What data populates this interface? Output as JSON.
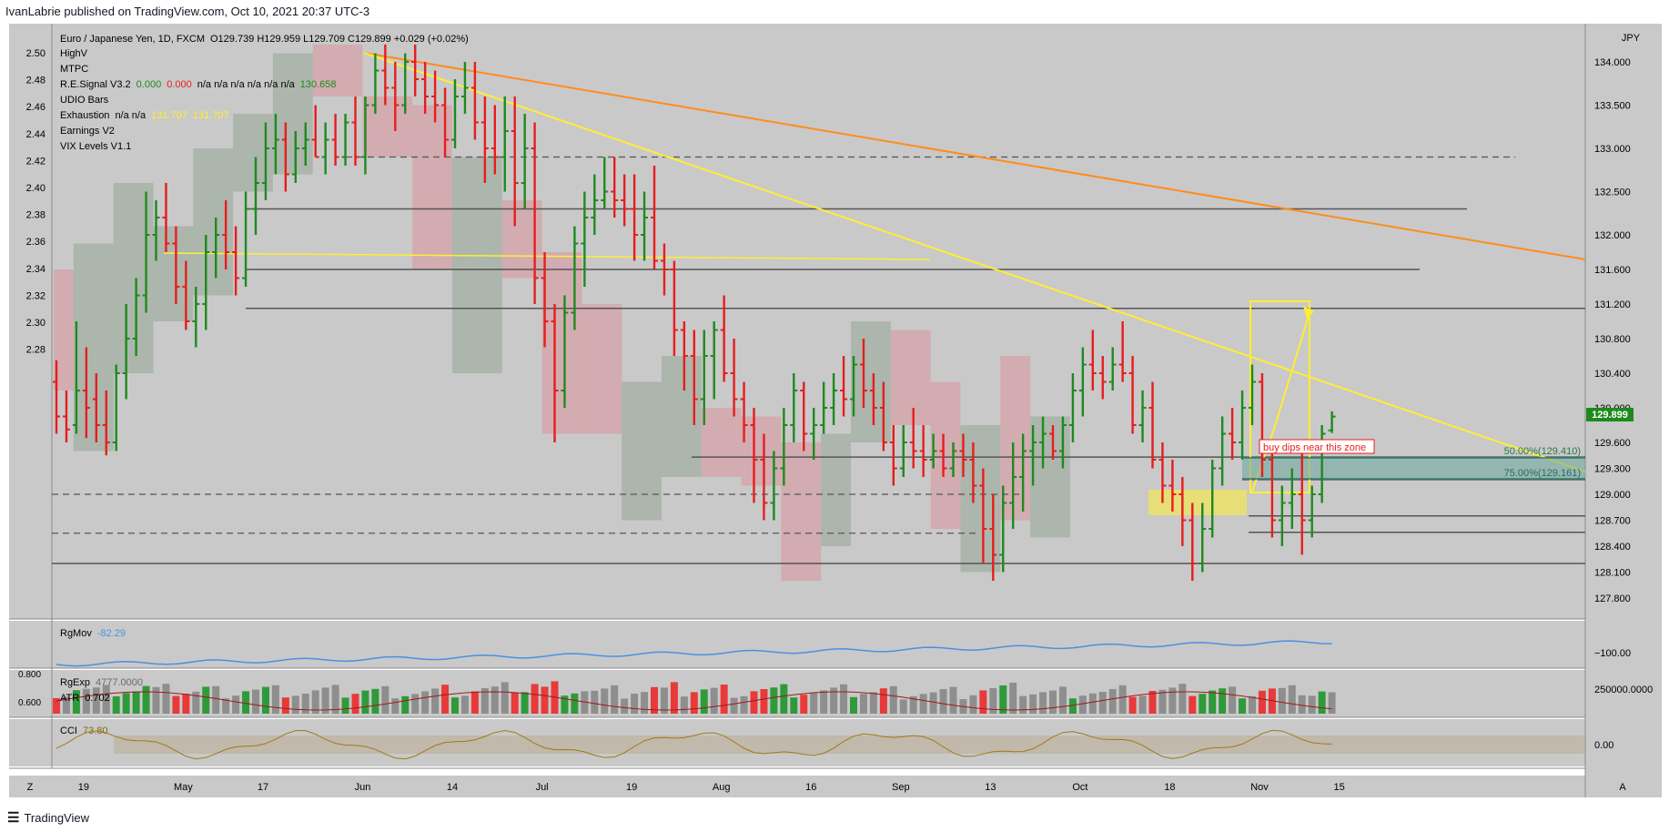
{
  "header": {
    "published_by": "IvanLabrie published on TradingView.com, Oct 10, 2021 20:37 UTC-3"
  },
  "footer": {
    "brand": "TradingView"
  },
  "legend": {
    "symbol": "Euro / Japanese Yen, 1D, FXCM",
    "ohlc": "O129.739 H129.959 L129.709 C129.899 +0.029 (+0.02%)",
    "indicators": [
      {
        "name": "HighV"
      },
      {
        "name": "MTPC"
      },
      {
        "name": "R.E.Signal V3.2",
        "v1": "0.000",
        "v2": "0.000",
        "rest": "n/a  n/a  n/a  n/a  n/a  n/a",
        "v3": "130.658"
      },
      {
        "name": "UDIO Bars"
      },
      {
        "name": "Exhaustion",
        "rest": "n/a  n/a",
        "v1": "131.707",
        "v2": "131.707"
      },
      {
        "name": "Earnings V2"
      },
      {
        "name": "VIX Levels V1.1"
      }
    ]
  },
  "axis": {
    "currency": "JPY",
    "left_ticks": [
      "2.50",
      "2.48",
      "2.46",
      "2.44",
      "2.42",
      "2.40",
      "2.38",
      "2.36",
      "2.34",
      "2.32",
      "2.30",
      "2.28"
    ],
    "right_ticks": [
      "134.000",
      "133.500",
      "133.000",
      "132.500",
      "132.000",
      "131.600",
      "131.200",
      "130.800",
      "130.400",
      "130.000",
      "129.600",
      "129.300",
      "129.000",
      "128.700",
      "128.400",
      "128.100",
      "127.800"
    ],
    "x_ticks": [
      "19",
      "May",
      "17",
      "Jun",
      "14",
      "Jul",
      "19",
      "Aug",
      "16",
      "Sep",
      "13",
      "Oct",
      "18",
      "Nov",
      "15"
    ],
    "corner_left": "Z",
    "corner_right": "A",
    "last_price": "129.899"
  },
  "annotations": {
    "note": "buy dips near this zone",
    "fib50": "50.00%(129.410)",
    "fib75": "75.00%(129.161)"
  },
  "panes": {
    "rgmov": {
      "label": "RgMov",
      "value": "-82.29",
      "tick": "−100.00"
    },
    "rgexp": {
      "label": "RgExp",
      "value": "4777.0000",
      "atr_label": "ATR",
      "atr_value": "0.702",
      "left_ticks": [
        "0.800",
        "0.600"
      ],
      "tick": "250000.0000"
    },
    "cci": {
      "label": "CCI",
      "value": "73.80",
      "tick": "0.00"
    }
  },
  "colors": {
    "bg": "#c9c9c9",
    "up": "#1e8a1e",
    "down": "#e81d1d",
    "neutral": "#111111",
    "yellow": "#ffee33",
    "orange": "#ff8c1a",
    "blue": "#4a90e2"
  },
  "chart_data": {
    "type": "bar",
    "title": "Euro / Japanese Yen, 1D, FXCM",
    "xlabel": "",
    "ylabel": "JPY",
    "ylim": [
      127.6,
      134.4
    ],
    "grid": false,
    "legend": "top-left",
    "levels": [
      132.3,
      131.6,
      131.15,
      129.43,
      129.17,
      128.75,
      128.56,
      132.9,
      129.0,
      128.55
    ],
    "series": [
      {
        "ohlc": [
          [
            130.3,
            130.55,
            129.7,
            129.9
          ],
          [
            129.9,
            130.2,
            129.6,
            129.75
          ],
          [
            129.8,
            131.0,
            129.7,
            130.2
          ],
          [
            130.2,
            130.7,
            129.65,
            130.0
          ],
          [
            130.1,
            130.4,
            129.6,
            129.8
          ],
          [
            129.8,
            130.2,
            129.45,
            129.6
          ],
          [
            129.6,
            130.5,
            129.5,
            130.4
          ],
          [
            130.4,
            131.2,
            130.1,
            130.8
          ],
          [
            130.8,
            131.5,
            130.6,
            131.3
          ],
          [
            131.3,
            132.5,
            131.1,
            132.0
          ],
          [
            132.0,
            132.4,
            131.7,
            132.2
          ],
          [
            132.2,
            132.6,
            131.8,
            131.9
          ],
          [
            131.9,
            132.1,
            131.2,
            131.4
          ],
          [
            131.4,
            131.7,
            130.9,
            131.0
          ],
          [
            131.0,
            131.4,
            130.7,
            131.2
          ],
          [
            131.2,
            132.0,
            130.9,
            131.8
          ],
          [
            131.8,
            132.2,
            131.5,
            132.0
          ],
          [
            132.0,
            132.4,
            131.6,
            131.8
          ],
          [
            131.8,
            132.1,
            131.3,
            131.5
          ],
          [
            131.5,
            132.5,
            131.4,
            132.3
          ],
          [
            132.3,
            132.9,
            132.0,
            132.6
          ],
          [
            132.6,
            133.3,
            132.4,
            133.0
          ],
          [
            133.0,
            133.4,
            132.7,
            133.1
          ],
          [
            133.1,
            133.3,
            132.5,
            132.7
          ],
          [
            132.7,
            133.2,
            132.6,
            133.0
          ],
          [
            133.0,
            133.3,
            132.8,
            133.1
          ],
          [
            133.1,
            133.5,
            132.9,
            132.9
          ],
          [
            132.9,
            133.3,
            132.7,
            133.1
          ],
          [
            133.1,
            133.4,
            132.8,
            132.9
          ],
          [
            132.9,
            133.4,
            132.8,
            133.3
          ],
          [
            133.3,
            133.6,
            132.8,
            132.9
          ],
          [
            132.9,
            133.6,
            132.7,
            133.5
          ],
          [
            133.5,
            134.1,
            133.4,
            133.9
          ],
          [
            133.9,
            134.2,
            133.5,
            133.7
          ],
          [
            133.7,
            134.0,
            133.2,
            133.5
          ],
          [
            133.5,
            134.1,
            133.4,
            134.0
          ],
          [
            134.0,
            134.2,
            133.6,
            133.8
          ],
          [
            133.8,
            134.0,
            133.4,
            133.6
          ],
          [
            133.6,
            133.9,
            133.3,
            133.5
          ],
          [
            133.5,
            133.7,
            132.9,
            133.1
          ],
          [
            133.1,
            133.8,
            133.0,
            133.6
          ],
          [
            133.6,
            134.0,
            133.4,
            133.7
          ],
          [
            133.7,
            134.0,
            133.1,
            133.3
          ],
          [
            133.3,
            133.6,
            132.6,
            133.0
          ],
          [
            133.0,
            133.5,
            132.7,
            132.9
          ],
          [
            132.9,
            133.6,
            132.5,
            133.2
          ],
          [
            133.2,
            133.6,
            132.1,
            132.6
          ],
          [
            132.6,
            133.4,
            132.3,
            133.0
          ],
          [
            133.0,
            133.3,
            131.2,
            131.5
          ],
          [
            131.5,
            131.8,
            130.7,
            131.0
          ],
          [
            131.0,
            131.2,
            129.6,
            130.2
          ],
          [
            130.2,
            131.3,
            130.0,
            131.1
          ],
          [
            131.1,
            132.1,
            130.9,
            131.9
          ],
          [
            131.9,
            132.5,
            131.4,
            132.2
          ],
          [
            132.2,
            132.7,
            132.0,
            132.4
          ],
          [
            132.4,
            132.9,
            132.3,
            132.5
          ],
          [
            132.5,
            132.9,
            132.2,
            132.4
          ],
          [
            132.4,
            132.7,
            132.1,
            132.3
          ],
          [
            132.3,
            132.7,
            131.7,
            132.0
          ],
          [
            132.0,
            132.5,
            131.7,
            132.2
          ],
          [
            132.2,
            132.8,
            131.6,
            131.7
          ],
          [
            131.7,
            131.9,
            131.3,
            131.6
          ],
          [
            131.6,
            131.7,
            130.6,
            130.9
          ],
          [
            130.9,
            131.0,
            130.2,
            130.6
          ],
          [
            130.6,
            130.9,
            129.8,
            130.1
          ],
          [
            130.1,
            130.9,
            129.8,
            130.6
          ],
          [
            130.6,
            131.0,
            130.1,
            130.9
          ],
          [
            130.9,
            131.3,
            130.3,
            130.4
          ],
          [
            130.4,
            130.8,
            129.9,
            130.1
          ],
          [
            130.1,
            130.3,
            129.6,
            129.8
          ],
          [
            129.8,
            130.0,
            128.9,
            129.4
          ],
          [
            129.4,
            129.7,
            128.7,
            128.9
          ],
          [
            128.9,
            129.5,
            128.7,
            129.3
          ],
          [
            129.3,
            130.0,
            129.1,
            129.8
          ],
          [
            129.8,
            130.4,
            129.6,
            130.2
          ],
          [
            130.2,
            130.3,
            129.5,
            129.7
          ],
          [
            129.7,
            130.0,
            129.4,
            129.8
          ],
          [
            129.8,
            130.3,
            129.7,
            130.0
          ],
          [
            130.0,
            130.4,
            129.8,
            130.2
          ],
          [
            130.2,
            130.6,
            129.9,
            130.1
          ],
          [
            130.1,
            130.6,
            129.9,
            130.5
          ],
          [
            130.5,
            130.8,
            130.0,
            130.2
          ],
          [
            130.2,
            130.4,
            129.8,
            130.0
          ],
          [
            130.0,
            130.3,
            129.5,
            129.6
          ],
          [
            129.6,
            129.8,
            129.1,
            129.3
          ],
          [
            129.3,
            129.8,
            129.2,
            129.6
          ],
          [
            129.6,
            130.0,
            129.3,
            129.5
          ],
          [
            129.5,
            129.8,
            129.2,
            129.4
          ],
          [
            129.4,
            129.7,
            129.3,
            129.5
          ],
          [
            129.5,
            129.7,
            129.2,
            129.3
          ],
          [
            129.3,
            129.6,
            129.2,
            129.5
          ],
          [
            129.5,
            129.7,
            129.2,
            129.4
          ],
          [
            129.4,
            129.6,
            128.9,
            129.1
          ],
          [
            129.1,
            129.3,
            128.2,
            128.6
          ],
          [
            128.6,
            129.0,
            128.0,
            128.3
          ],
          [
            128.3,
            129.1,
            128.1,
            128.9
          ],
          [
            128.9,
            129.6,
            128.6,
            129.2
          ],
          [
            129.2,
            129.7,
            128.8,
            129.5
          ],
          [
            129.5,
            129.8,
            129.1,
            129.6
          ],
          [
            129.6,
            129.9,
            129.3,
            129.7
          ],
          [
            129.7,
            129.8,
            129.4,
            129.5
          ],
          [
            129.5,
            129.9,
            129.3,
            129.8
          ],
          [
            129.8,
            130.4,
            129.6,
            130.2
          ],
          [
            130.2,
            130.7,
            129.9,
            130.5
          ],
          [
            130.5,
            130.9,
            130.2,
            130.4
          ],
          [
            130.4,
            130.6,
            130.1,
            130.3
          ],
          [
            130.3,
            130.7,
            130.2,
            130.5
          ],
          [
            130.5,
            131.0,
            130.3,
            130.4
          ],
          [
            130.4,
            130.6,
            129.7,
            129.8
          ],
          [
            129.8,
            130.2,
            129.6,
            130.0
          ],
          [
            130.0,
            130.3,
            129.3,
            129.4
          ],
          [
            129.4,
            129.6,
            128.9,
            129.1
          ],
          [
            129.1,
            129.4,
            128.8,
            129.0
          ],
          [
            129.0,
            129.2,
            128.4,
            128.7
          ],
          [
            128.7,
            128.9,
            128.0,
            128.2
          ],
          [
            128.2,
            128.9,
            128.1,
            128.6
          ],
          [
            128.6,
            129.4,
            128.5,
            129.3
          ],
          [
            129.3,
            129.9,
            129.1,
            129.7
          ],
          [
            129.7,
            130.0,
            129.4,
            129.6
          ],
          [
            129.6,
            130.2,
            129.4,
            130.0
          ],
          [
            130.0,
            130.5,
            129.8,
            130.3
          ],
          [
            130.3,
            130.4,
            129.2,
            129.4
          ],
          [
            129.4,
            129.6,
            128.5,
            128.7
          ],
          [
            128.7,
            129.1,
            128.4,
            128.9
          ],
          [
            128.9,
            129.3,
            128.6,
            129.0
          ],
          [
            129.0,
            129.5,
            128.3,
            128.7
          ],
          [
            128.7,
            129.1,
            128.5,
            129.0
          ],
          [
            129.0,
            129.8,
            128.9,
            129.7
          ],
          [
            129.739,
            129.959,
            129.709,
            129.899
          ]
        ]
      }
    ]
  }
}
